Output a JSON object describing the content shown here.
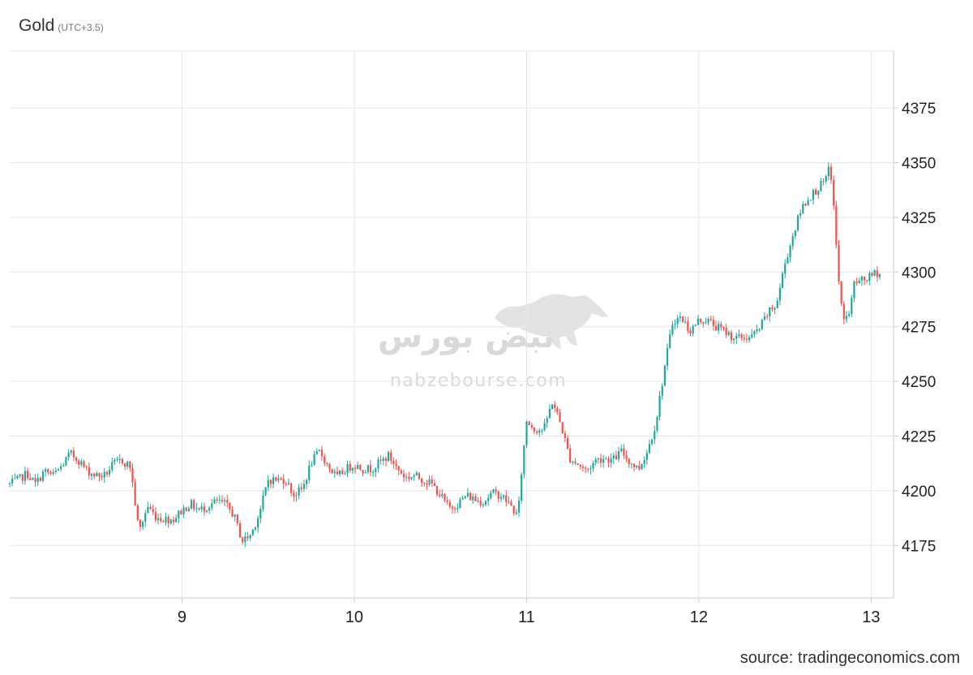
{
  "header": {
    "title": "Gold",
    "timezone": "(UTC+3.5)"
  },
  "footer": {
    "source": "source: tradingeconomics.com"
  },
  "watermark": {
    "name": "نبض بورس",
    "url": "nabzebourse.com"
  },
  "colors": {
    "up": "#26a69a",
    "down": "#ef5350",
    "grid": "#e6e6e6",
    "axis": "#cccccc"
  },
  "chart_data": {
    "type": "candlestick",
    "title": "Gold",
    "x_ticks": [
      9,
      10,
      11,
      12,
      13
    ],
    "y_ticks": [
      4175,
      4200,
      4225,
      4250,
      4275,
      4300,
      4325,
      4350,
      4375
    ],
    "xlim": [
      8.0,
      13.13
    ],
    "ylim": [
      4151,
      4401
    ],
    "grid": true,
    "path": [
      [
        8.0,
        4203
      ],
      [
        8.05,
        4205
      ],
      [
        8.1,
        4208
      ],
      [
        8.15,
        4203
      ],
      [
        8.2,
        4209
      ],
      [
        8.25,
        4207
      ],
      [
        8.3,
        4211
      ],
      [
        8.35,
        4217
      ],
      [
        8.4,
        4214
      ],
      [
        8.45,
        4209
      ],
      [
        8.5,
        4207
      ],
      [
        8.55,
        4207
      ],
      [
        8.6,
        4212
      ],
      [
        8.65,
        4214
      ],
      [
        8.7,
        4211
      ],
      [
        8.75,
        4181
      ],
      [
        8.8,
        4193
      ],
      [
        8.85,
        4188
      ],
      [
        8.9,
        4187
      ],
      [
        8.95,
        4187
      ],
      [
        9.0,
        4191
      ],
      [
        9.05,
        4194
      ],
      [
        9.1,
        4191
      ],
      [
        9.15,
        4193
      ],
      [
        9.2,
        4195
      ],
      [
        9.25,
        4194
      ],
      [
        9.3,
        4189
      ],
      [
        9.35,
        4177
      ],
      [
        9.4,
        4180
      ],
      [
        9.45,
        4190
      ],
      [
        9.5,
        4205
      ],
      [
        9.55,
        4205
      ],
      [
        9.6,
        4205
      ],
      [
        9.65,
        4198
      ],
      [
        9.7,
        4201
      ],
      [
        9.75,
        4213
      ],
      [
        9.8,
        4218
      ],
      [
        9.85,
        4211
      ],
      [
        9.9,
        4206
      ],
      [
        9.95,
        4210
      ],
      [
        10.0,
        4212
      ],
      [
        10.05,
        4210
      ],
      [
        10.1,
        4210
      ],
      [
        10.15,
        4213
      ],
      [
        10.2,
        4216
      ],
      [
        10.25,
        4210
      ],
      [
        10.3,
        4206
      ],
      [
        10.35,
        4207
      ],
      [
        10.4,
        4205
      ],
      [
        10.45,
        4203
      ],
      [
        10.5,
        4198
      ],
      [
        10.55,
        4192
      ],
      [
        10.6,
        4194
      ],
      [
        10.65,
        4198
      ],
      [
        10.7,
        4196
      ],
      [
        10.75,
        4195
      ],
      [
        10.8,
        4199
      ],
      [
        10.85,
        4198
      ],
      [
        10.9,
        4194
      ],
      [
        10.95,
        4188
      ],
      [
        10.97,
        4208
      ],
      [
        11.0,
        4232
      ],
      [
        11.05,
        4228
      ],
      [
        11.1,
        4228
      ],
      [
        11.15,
        4241
      ],
      [
        11.2,
        4230
      ],
      [
        11.25,
        4215
      ],
      [
        11.3,
        4212
      ],
      [
        11.35,
        4209
      ],
      [
        11.4,
        4214
      ],
      [
        11.45,
        4215
      ],
      [
        11.5,
        4214
      ],
      [
        11.55,
        4218
      ],
      [
        11.6,
        4213
      ],
      [
        11.65,
        4210
      ],
      [
        11.7,
        4218
      ],
      [
        11.75,
        4231
      ],
      [
        11.8,
        4256
      ],
      [
        11.85,
        4278
      ],
      [
        11.9,
        4279
      ],
      [
        11.95,
        4273
      ],
      [
        12.0,
        4278
      ],
      [
        12.05,
        4278
      ],
      [
        12.1,
        4275
      ],
      [
        12.15,
        4273
      ],
      [
        12.2,
        4270
      ],
      [
        12.25,
        4270
      ],
      [
        12.3,
        4270
      ],
      [
        12.35,
        4274
      ],
      [
        12.4,
        4281
      ],
      [
        12.45,
        4285
      ],
      [
        12.5,
        4304
      ],
      [
        12.55,
        4318
      ],
      [
        12.6,
        4330
      ],
      [
        12.65,
        4335
      ],
      [
        12.7,
        4339
      ],
      [
        12.74,
        4342
      ],
      [
        12.75,
        4348
      ],
      [
        12.77,
        4343
      ],
      [
        12.8,
        4310
      ],
      [
        12.82,
        4286
      ],
      [
        12.85,
        4278
      ],
      [
        12.88,
        4283
      ],
      [
        12.9,
        4295
      ],
      [
        12.95,
        4296
      ],
      [
        13.0,
        4298
      ],
      [
        13.03,
        4300
      ],
      [
        13.05,
        4299
      ]
    ]
  }
}
